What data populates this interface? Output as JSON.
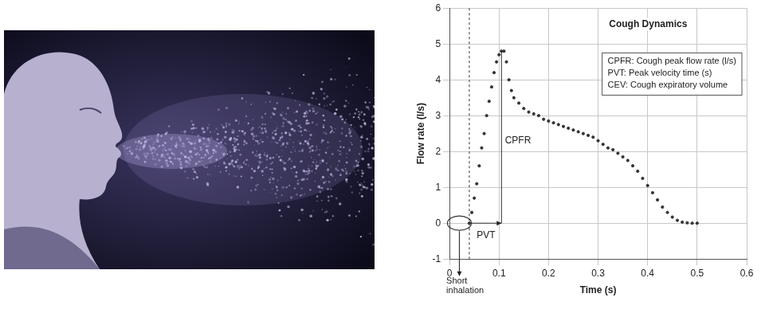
{
  "chart_data": {
    "type": "scatter",
    "title": "Cough Dynamics",
    "x_label": "Time (s)",
    "y_label": "Flow rate (l/s)",
    "x": [
      0.04,
      0.045,
      0.05,
      0.055,
      0.06,
      0.065,
      0.07,
      0.075,
      0.08,
      0.085,
      0.09,
      0.095,
      0.1,
      0.105,
      0.11,
      0.115,
      0.12,
      0.125,
      0.13,
      0.14,
      0.15,
      0.16,
      0.17,
      0.18,
      0.19,
      0.2,
      0.21,
      0.22,
      0.23,
      0.24,
      0.25,
      0.26,
      0.27,
      0.28,
      0.29,
      0.3,
      0.31,
      0.32,
      0.33,
      0.34,
      0.35,
      0.36,
      0.37,
      0.38,
      0.39,
      0.4,
      0.41,
      0.42,
      0.43,
      0.44,
      0.45,
      0.46,
      0.47,
      0.48,
      0.49,
      0.5
    ],
    "values": [
      0.0,
      0.3,
      0.7,
      1.1,
      1.6,
      2.1,
      2.5,
      3.0,
      3.4,
      3.8,
      4.2,
      4.5,
      4.7,
      4.8,
      4.8,
      4.5,
      4.0,
      3.7,
      3.5,
      3.35,
      3.2,
      3.1,
      3.05,
      3.0,
      2.9,
      2.85,
      2.8,
      2.75,
      2.7,
      2.65,
      2.6,
      2.55,
      2.5,
      2.45,
      2.4,
      2.3,
      2.2,
      2.1,
      2.05,
      1.95,
      1.85,
      1.75,
      1.6,
      1.45,
      1.25,
      1.05,
      0.85,
      0.65,
      0.45,
      0.3,
      0.17,
      0.08,
      0.03,
      0.01,
      0.0,
      0.0
    ],
    "color": "#333333",
    "marker": "dot",
    "xlim": [
      0,
      0.6
    ],
    "xticks": [
      0,
      0.1,
      0.2,
      0.3,
      0.4,
      0.5,
      0.6
    ],
    "ylim": [
      -1,
      6
    ],
    "yticks": [
      -1,
      0,
      1,
      2,
      3,
      4,
      5,
      6
    ],
    "grid": true,
    "key": [
      "CPFR: Cough peak flow rate (l/s)",
      "PVT: Peak velocity time (s)",
      "CEV: Cough expiratory volume"
    ],
    "annotations": [
      {
        "text": "CPFR",
        "x": 0.112,
        "y": 2.3
      },
      {
        "text": "PVT",
        "x": 0.055,
        "y": -0.35
      },
      {
        "text": "Short inhalation",
        "x": 0,
        "y": -1.5
      }
    ],
    "pvt_interval": [
      0.04,
      0.105
    ],
    "cpfr": 4.8,
    "inhalation_circle": [
      0.02,
      0
    ]
  }
}
